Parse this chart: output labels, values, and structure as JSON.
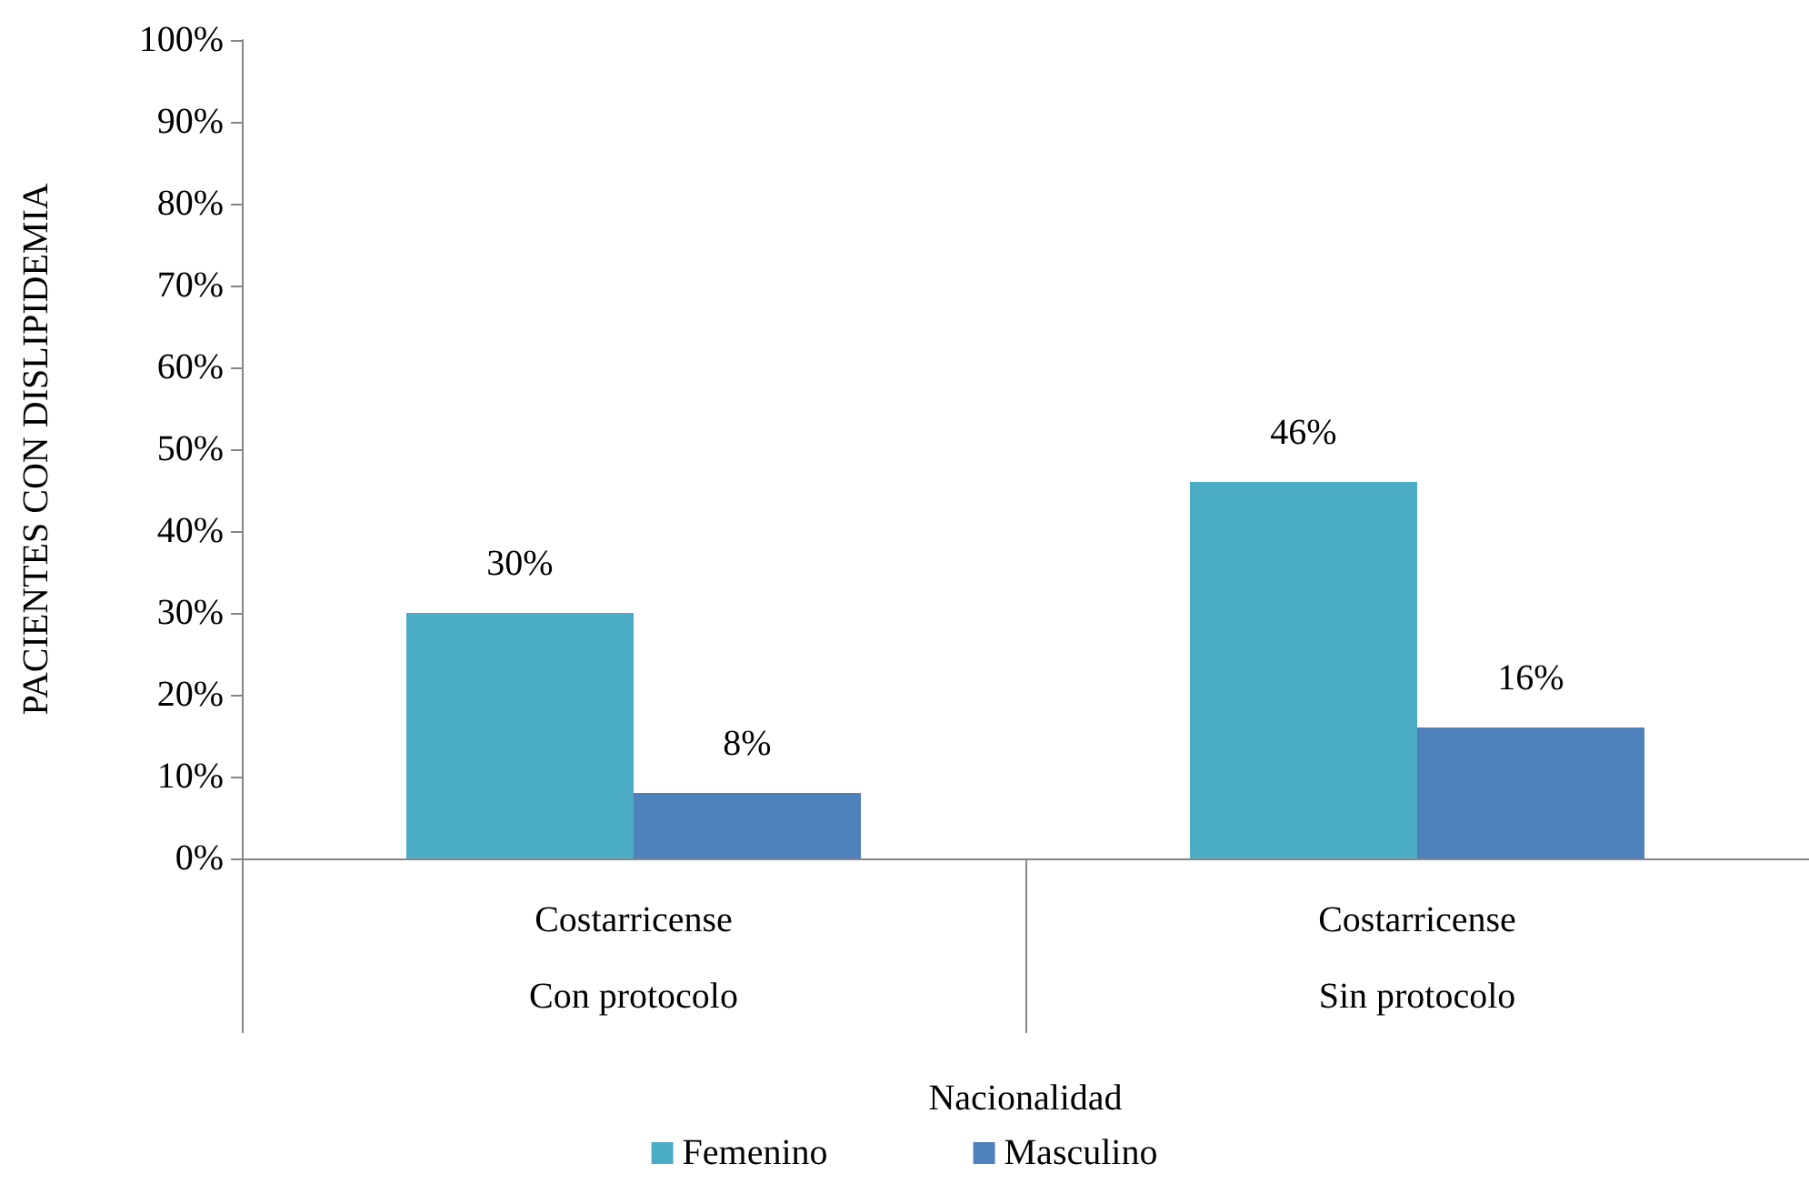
{
  "chart_data": {
    "type": "bar",
    "xlabel": "Nacionalidad",
    "ylabel": "PACIENTES CON DISLIPIDEMIA",
    "categories": [
      "Costarricense",
      "Costarricense"
    ],
    "annotations": [
      "Con protocolo",
      "Sin protocolo"
    ],
    "series": [
      {
        "name": "Femenino",
        "color": "#4bacc6",
        "values": [
          30,
          46
        ],
        "value_labels": [
          "30%",
          "46%"
        ]
      },
      {
        "name": "Masculino",
        "color": "#4f81bd",
        "values": [
          8,
          16
        ],
        "value_labels": [
          "8%",
          "16%"
        ]
      }
    ],
    "ylim": [
      0,
      100
    ],
    "yticks": [
      {
        "value": 0,
        "label": "0%"
      },
      {
        "value": 10,
        "label": "10%"
      },
      {
        "value": 20,
        "label": "20%"
      },
      {
        "value": 30,
        "label": "30%"
      },
      {
        "value": 40,
        "label": "40%"
      },
      {
        "value": 50,
        "label": "50%"
      },
      {
        "value": 60,
        "label": "60%"
      },
      {
        "value": 70,
        "label": "70%"
      },
      {
        "value": 80,
        "label": "80%"
      },
      {
        "value": 90,
        "label": "90%"
      },
      {
        "value": 100,
        "label": "100%"
      }
    ],
    "grid": false,
    "legend": "bottom"
  }
}
